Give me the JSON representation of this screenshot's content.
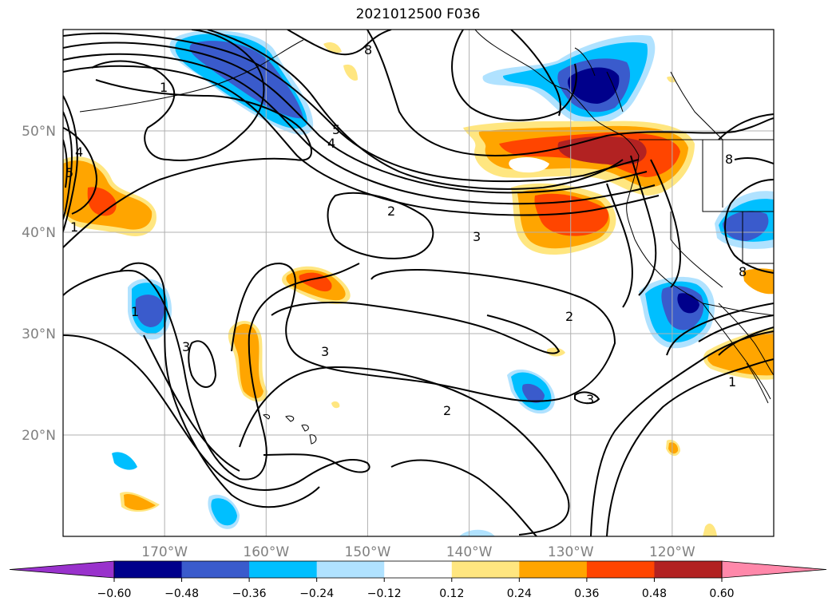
{
  "title": "2021012500 F036",
  "map": {
    "lon_range": [
      -180,
      -110
    ],
    "lat_range": [
      10,
      60
    ],
    "lon_ticks": [
      {
        "value": -170,
        "label": "170°W"
      },
      {
        "value": -160,
        "label": "160°W"
      },
      {
        "value": -150,
        "label": "150°W"
      },
      {
        "value": -140,
        "label": "140°W"
      },
      {
        "value": -130,
        "label": "130°W"
      },
      {
        "value": -120,
        "label": "120°W"
      }
    ],
    "lat_ticks": [
      {
        "value": 50,
        "label": "50°N"
      },
      {
        "value": 40,
        "label": "40°N"
      },
      {
        "value": 30,
        "label": "30°N"
      },
      {
        "value": 20,
        "label": "20°N"
      }
    ],
    "grid": true,
    "tick_label_color": "#808080"
  },
  "colorbar": {
    "orientation": "horizontal",
    "extend": "both",
    "levels": [
      "−0.60",
      "−0.48",
      "−0.36",
      "−0.24",
      "−0.12",
      "0.12",
      "0.24",
      "0.36",
      "0.48",
      "0.60"
    ],
    "colors": [
      "#9932cc",
      "#00008b",
      "#3a5bcc",
      "#00bfff",
      "#b0e2ff",
      "#ffffff",
      "#ffe680",
      "#ffa500",
      "#ff4500",
      "#b22222",
      "#ff88aa"
    ]
  },
  "contour_labels": [
    "1",
    "2",
    "3",
    "4",
    "5",
    "8"
  ],
  "contour_label_colors": "#000000",
  "shading_colors": {
    "neg1": "#b0e2ff",
    "neg2": "#00bfff",
    "neg3": "#3a5bcc",
    "neg4": "#00008b",
    "pos1": "#ffe680",
    "pos2": "#ffa500",
    "pos3": "#ff4500",
    "pos4": "#b22222"
  }
}
